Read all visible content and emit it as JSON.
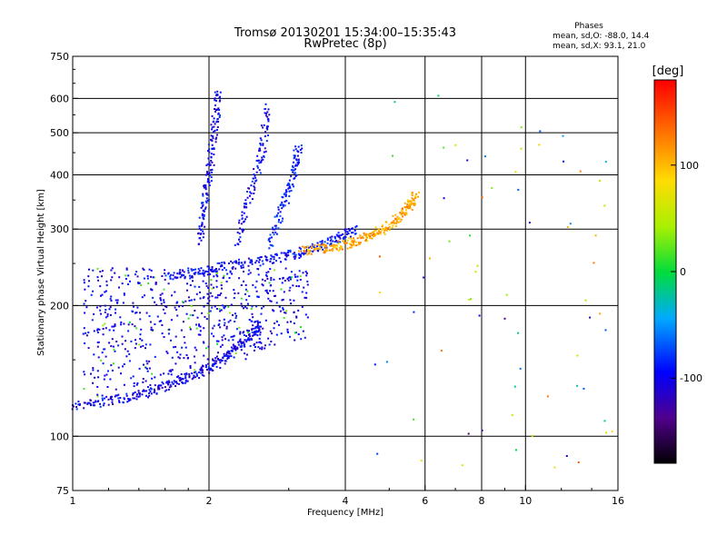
{
  "chart_data": {
    "type": "scatter",
    "title": "Tromsø 20130201 15:34:00–15:35:43",
    "subtitle": "RwPretec (8p)",
    "xlabel": "Frequency [MHz]",
    "ylabel": "Stationary phase Virtual Height [km]",
    "x_scale": "log",
    "y_scale": "log",
    "xlim": [
      1,
      16
    ],
    "ylim": [
      75,
      750
    ],
    "x_ticks": [
      "1",
      "2",
      "4",
      "6",
      "8",
      "10",
      "16"
    ],
    "y_ticks": [
      "75",
      "100",
      "200",
      "300",
      "400",
      "500",
      "600",
      "750"
    ],
    "x_grid": [
      2,
      4,
      6,
      8,
      10
    ],
    "y_grid": [
      100,
      200,
      300,
      400,
      500,
      600
    ],
    "color_encodes": "phase",
    "info": {
      "heading": "Phases",
      "line1": "mean, sd,O: -88.0, 14.4",
      "line2": "mean, sd,X: 93.1, 21.0"
    },
    "colorbar": {
      "label": "[deg]",
      "min": -180,
      "max": 180,
      "ticks": [
        "100",
        "0",
        "-100"
      ]
    },
    "traces": [
      {
        "role": "O-mode lower trace",
        "points": [
          [
            1.0,
            118
          ],
          [
            1.2,
            121
          ],
          [
            1.4,
            125
          ],
          [
            1.6,
            131
          ],
          [
            1.8,
            137
          ],
          [
            2.0,
            145
          ],
          [
            2.2,
            155
          ],
          [
            2.4,
            168
          ],
          [
            2.6,
            182
          ]
        ],
        "phase": -100
      },
      {
        "role": "O-mode upper trace",
        "points": [
          [
            1.6,
            235
          ],
          [
            1.9,
            240
          ],
          [
            2.2,
            248
          ],
          [
            2.6,
            255
          ],
          [
            3.0,
            262
          ],
          [
            3.4,
            272
          ],
          [
            3.8,
            285
          ],
          [
            4.2,
            300
          ]
        ],
        "phase": -95
      },
      {
        "role": "X-mode trace",
        "points": [
          [
            3.2,
            268
          ],
          [
            3.6,
            272
          ],
          [
            4.0,
            278
          ],
          [
            4.4,
            288
          ],
          [
            4.8,
            300
          ],
          [
            5.2,
            318
          ],
          [
            5.5,
            340
          ],
          [
            5.7,
            360
          ]
        ],
        "phase": 110
      },
      {
        "role": "Multiple echo 1",
        "points": [
          [
            1.9,
            280
          ],
          [
            1.95,
            350
          ],
          [
            2.0,
            420
          ],
          [
            2.05,
            520
          ],
          [
            2.1,
            630
          ]
        ],
        "phase": -100
      },
      {
        "role": "Multiple echo 2",
        "points": [
          [
            2.3,
            280
          ],
          [
            2.45,
            360
          ],
          [
            2.6,
            450
          ],
          [
            2.7,
            580
          ]
        ],
        "phase": -100
      },
      {
        "role": "Multiple echo 3",
        "points": [
          [
            2.7,
            275
          ],
          [
            2.9,
            340
          ],
          [
            3.05,
            400
          ],
          [
            3.15,
            470
          ]
        ],
        "phase": -90
      }
    ]
  }
}
